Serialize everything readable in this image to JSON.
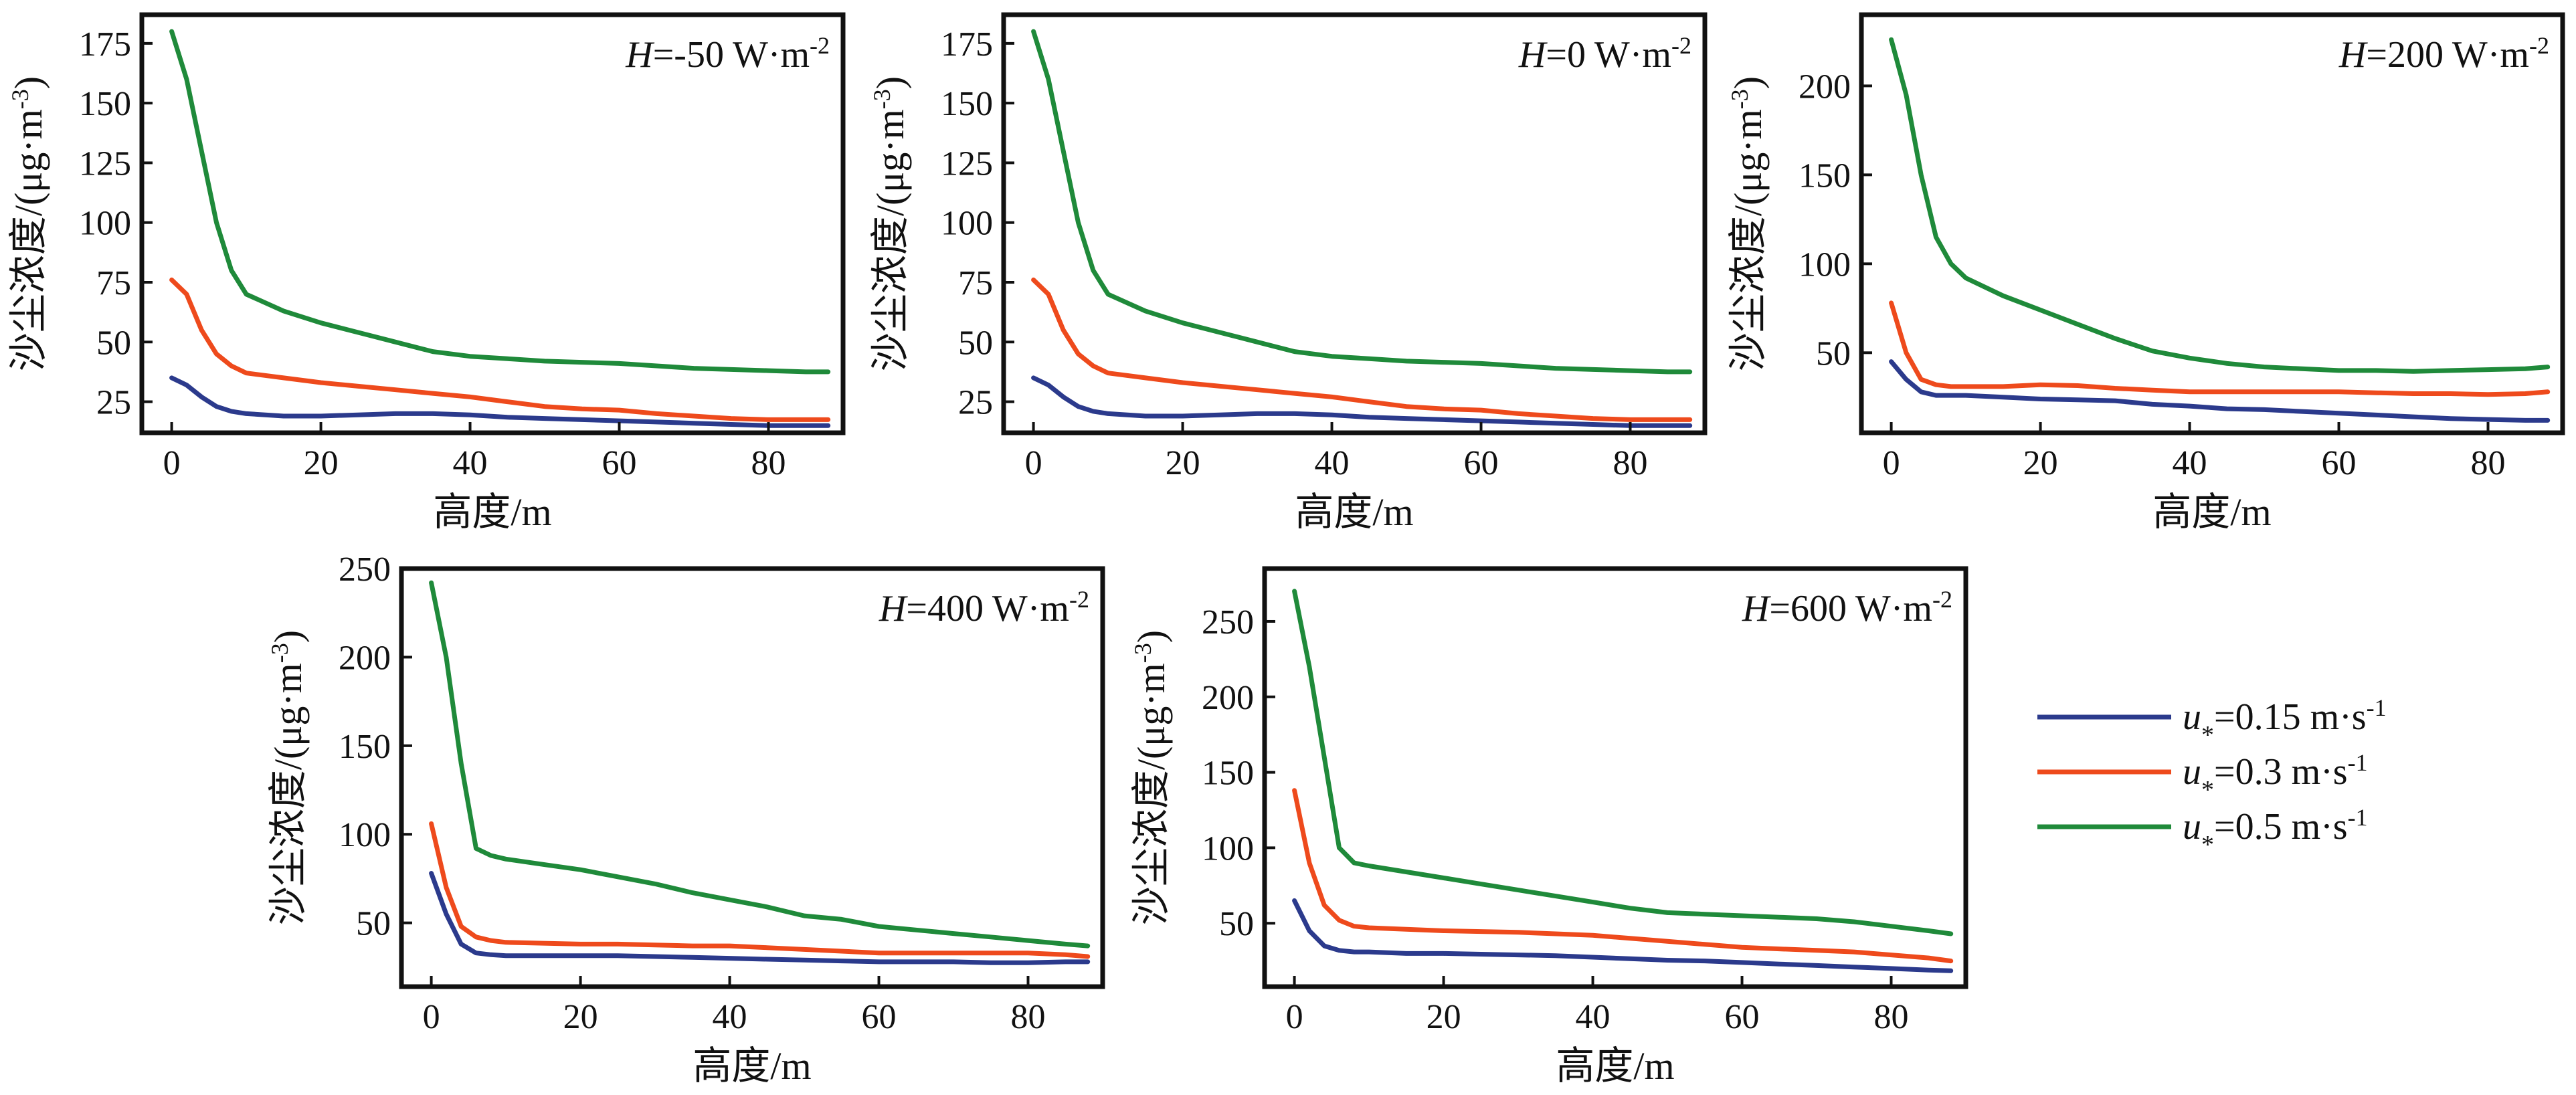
{
  "colors": {
    "u015": "#2b3a8c",
    "u03": "#ee4a1c",
    "u05": "#1f8a3a",
    "axis": "#111111"
  },
  "legend": {
    "items": [
      {
        "var": "u",
        "sub": "*",
        "text": "=0.15 m·s",
        "sup": "-1",
        "color_key": "u015"
      },
      {
        "var": "u",
        "sub": "*",
        "text": "=0.3 m·s",
        "sup": "-1",
        "color_key": "u03"
      },
      {
        "var": "u",
        "sub": "*",
        "text": "=0.5 m·s",
        "sup": "-1",
        "color_key": "u05"
      }
    ]
  },
  "chart_data": [
    {
      "type": "line",
      "panel_label": {
        "var": "H",
        "text": "=-50 W·m",
        "sup": "-2"
      },
      "xlabel": "高度/m",
      "ylabel": "沙尘浓度/(μg·m",
      "ylabel_sup": "-3",
      "ylabel_close": ")",
      "xlim": [
        -4,
        90
      ],
      "ylim": [
        12,
        187
      ],
      "xticks": [
        0,
        20,
        40,
        60,
        80
      ],
      "yticks": [
        25,
        50,
        75,
        100,
        125,
        150,
        175
      ],
      "grid": false,
      "x": [
        0,
        2,
        4,
        6,
        8,
        10,
        15,
        20,
        25,
        30,
        35,
        40,
        45,
        50,
        55,
        60,
        65,
        70,
        75,
        80,
        85,
        88
      ],
      "series": [
        {
          "name_key": "u015",
          "values": [
            35,
            32,
            27,
            23,
            21,
            20,
            19,
            19,
            19.5,
            20,
            20,
            19.5,
            18.5,
            18,
            17.5,
            17,
            16.5,
            16,
            15.5,
            15,
            15,
            15
          ]
        },
        {
          "name_key": "u03",
          "values": [
            76,
            70,
            55,
            45,
            40,
            37,
            35,
            33,
            31.5,
            30,
            28.5,
            27,
            25,
            23,
            22,
            21.5,
            20,
            19,
            18,
            17.5,
            17.5,
            17.5
          ]
        },
        {
          "name_key": "u05",
          "values": [
            180,
            160,
            130,
            100,
            80,
            70,
            63,
            58,
            54,
            50,
            46,
            44,
            43,
            42,
            41.5,
            41,
            40,
            39,
            38.5,
            38,
            37.5,
            37.5
          ]
        }
      ]
    },
    {
      "type": "line",
      "panel_label": {
        "var": "H",
        "text": "=0 W·m",
        "sup": "-2"
      },
      "xlabel": "高度/m",
      "ylabel": "沙尘浓度/(μg·m",
      "ylabel_sup": "-3",
      "ylabel_close": ")",
      "xlim": [
        -4,
        90
      ],
      "ylim": [
        12,
        187
      ],
      "xticks": [
        0,
        20,
        40,
        60,
        80
      ],
      "yticks": [
        25,
        50,
        75,
        100,
        125,
        150,
        175
      ],
      "grid": false,
      "x": [
        0,
        2,
        4,
        6,
        8,
        10,
        15,
        20,
        25,
        30,
        35,
        40,
        45,
        50,
        55,
        60,
        65,
        70,
        75,
        80,
        85,
        88
      ],
      "series": [
        {
          "name_key": "u015",
          "values": [
            35,
            32,
            27,
            23,
            21,
            20,
            19,
            19,
            19.5,
            20,
            20,
            19.5,
            18.5,
            18,
            17.5,
            17,
            16.5,
            16,
            15.5,
            15,
            15,
            15
          ]
        },
        {
          "name_key": "u03",
          "values": [
            76,
            70,
            55,
            45,
            40,
            37,
            35,
            33,
            31.5,
            30,
            28.5,
            27,
            25,
            23,
            22,
            21.5,
            20,
            19,
            18,
            17.5,
            17.5,
            17.5
          ]
        },
        {
          "name_key": "u05",
          "values": [
            180,
            160,
            130,
            100,
            80,
            70,
            63,
            58,
            54,
            50,
            46,
            44,
            43,
            42,
            41.5,
            41,
            40,
            39,
            38.5,
            38,
            37.5,
            37.5
          ]
        }
      ]
    },
    {
      "type": "line",
      "panel_label": {
        "var": "H",
        "text": "=200 W·m",
        "sup": "-2"
      },
      "xlabel": "高度/m",
      "ylabel": "沙尘浓度/(μg·m",
      "ylabel_sup": "-3",
      "ylabel_close": ")",
      "xlim": [
        -4,
        90
      ],
      "ylim": [
        5,
        240
      ],
      "xticks": [
        0,
        20,
        40,
        60,
        80
      ],
      "yticks": [
        50,
        100,
        150,
        200
      ],
      "grid": false,
      "x": [
        0,
        2,
        4,
        6,
        8,
        10,
        15,
        20,
        25,
        30,
        35,
        40,
        45,
        50,
        55,
        60,
        65,
        70,
        75,
        80,
        85,
        88
      ],
      "series": [
        {
          "name_key": "u015",
          "values": [
            45,
            35,
            28,
            26,
            26,
            26,
            25,
            24,
            23.5,
            23,
            21,
            20,
            18.5,
            18,
            17,
            16,
            15,
            14,
            13,
            12.5,
            12,
            12
          ]
        },
        {
          "name_key": "u03",
          "values": [
            78,
            50,
            35,
            32,
            31,
            31,
            31,
            32,
            31.5,
            30,
            29,
            28,
            28,
            28,
            28,
            28,
            27.5,
            27,
            27,
            26.5,
            27,
            28
          ]
        },
        {
          "name_key": "u05",
          "values": [
            226,
            195,
            150,
            115,
            100,
            92,
            82,
            74,
            66,
            58,
            51,
            47,
            44,
            42,
            41,
            40,
            40,
            39.5,
            40,
            40.5,
            41,
            42
          ]
        }
      ]
    },
    {
      "type": "line",
      "panel_label": {
        "var": "H",
        "text": "=400 W·m",
        "sup": "-2"
      },
      "xlabel": "高度/m",
      "ylabel": "沙尘浓度/(μg·m",
      "ylabel_sup": "-3",
      "ylabel_close": ")",
      "xlim": [
        -4,
        90
      ],
      "ylim": [
        14,
        250
      ],
      "xticks": [
        0,
        20,
        40,
        60,
        80
      ],
      "yticks": [
        50,
        100,
        150,
        200,
        250
      ],
      "grid": false,
      "x": [
        0,
        2,
        4,
        6,
        8,
        10,
        15,
        20,
        25,
        30,
        35,
        40,
        45,
        50,
        55,
        60,
        65,
        70,
        75,
        80,
        85,
        88
      ],
      "series": [
        {
          "name_key": "u015",
          "values": [
            78,
            55,
            38,
            33,
            32,
            31.5,
            31.5,
            31.5,
            31.5,
            31,
            30.5,
            30,
            29.5,
            29,
            28.5,
            28,
            28,
            28,
            27.5,
            27.5,
            28,
            28
          ]
        },
        {
          "name_key": "u03",
          "values": [
            106,
            70,
            48,
            42,
            40,
            39,
            38.5,
            38,
            38,
            37.5,
            37,
            37,
            36,
            35,
            34,
            33,
            33,
            33,
            33,
            33,
            32,
            31
          ]
        },
        {
          "name_key": "u05",
          "values": [
            242,
            200,
            140,
            92,
            88,
            86,
            83,
            80,
            76,
            72,
            67,
            63,
            59,
            54,
            52,
            48,
            46,
            44,
            42,
            40,
            38,
            37
          ]
        }
      ]
    },
    {
      "type": "line",
      "panel_label": {
        "var": "H",
        "text": "=600 W·m",
        "sup": "-2"
      },
      "xlabel": "高度/m",
      "ylabel": "沙尘浓度/(μg·m",
      "ylabel_sup": "-3",
      "ylabel_close": ")",
      "xlim": [
        -4,
        90
      ],
      "ylim": [
        8,
        285
      ],
      "xticks": [
        0,
        20,
        40,
        60,
        80
      ],
      "yticks": [
        50,
        100,
        150,
        200,
        250
      ],
      "grid": false,
      "x": [
        0,
        2,
        4,
        6,
        8,
        10,
        15,
        20,
        25,
        30,
        35,
        40,
        45,
        50,
        55,
        60,
        65,
        70,
        75,
        80,
        85,
        88
      ],
      "series": [
        {
          "name_key": "u015",
          "values": [
            65,
            45,
            35,
            32,
            31,
            31,
            30,
            30,
            29.5,
            29,
            28.5,
            27.5,
            26.5,
            25.5,
            25,
            24,
            23,
            22,
            21,
            20,
            19,
            18.5
          ]
        },
        {
          "name_key": "u03",
          "values": [
            138,
            90,
            62,
            52,
            48,
            47,
            46,
            45,
            44.5,
            44,
            43,
            42,
            40,
            38,
            36,
            34,
            33,
            32,
            31,
            29,
            27,
            25
          ]
        },
        {
          "name_key": "u05",
          "values": [
            270,
            220,
            160,
            100,
            90,
            88,
            84,
            80,
            76,
            72,
            68,
            64,
            60,
            57,
            56,
            55,
            54,
            53,
            51,
            48,
            45,
            43
          ]
        }
      ]
    }
  ]
}
